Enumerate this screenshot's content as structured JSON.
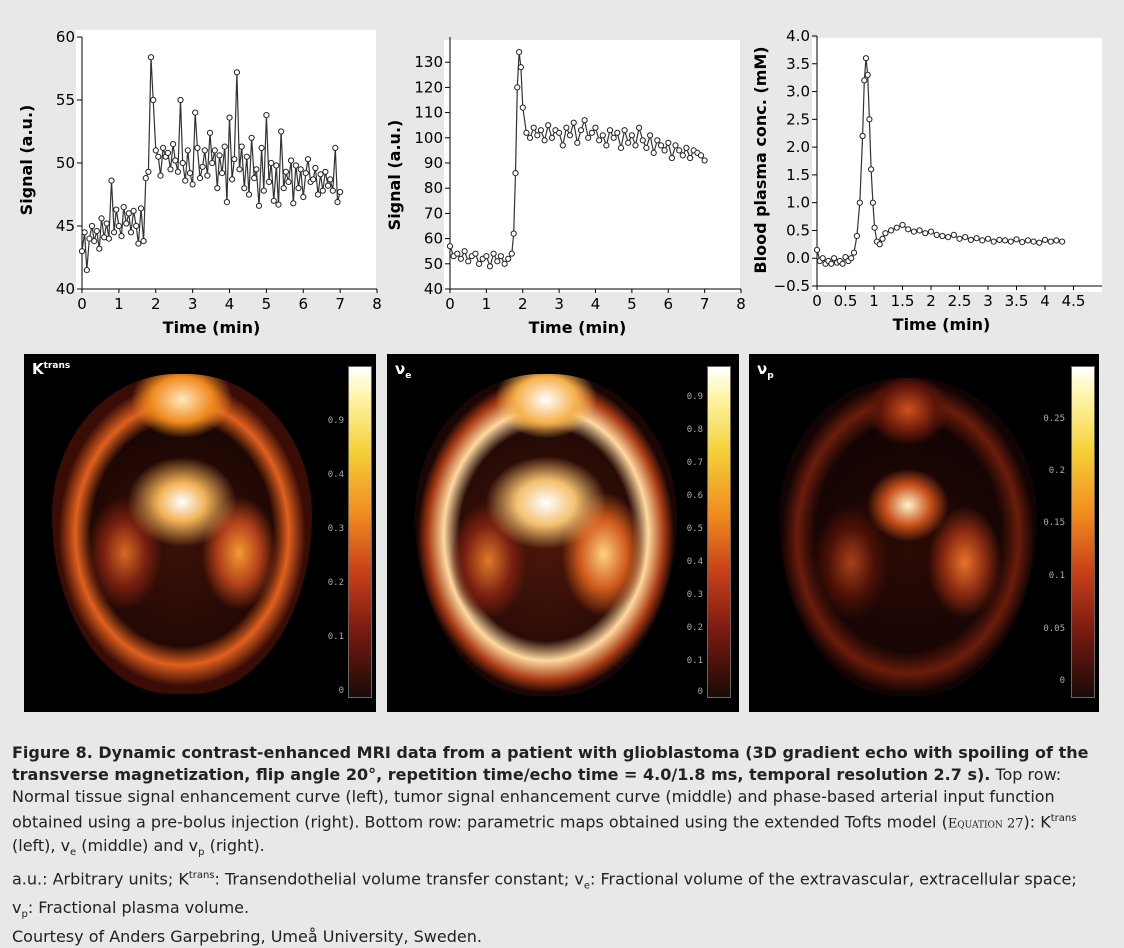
{
  "chart_data": [
    {
      "type": "line",
      "title": "",
      "xlabel": "Time (min)",
      "ylabel": "Signal (a.u.)",
      "xlim": [
        0,
        8
      ],
      "ylim": [
        40,
        60
      ],
      "xticks": [
        0,
        1,
        2,
        3,
        4,
        5,
        6,
        7,
        8
      ],
      "yticks": [
        40,
        45,
        50,
        55,
        60
      ],
      "x": [
        0.0,
        0.07,
        0.13,
        0.2,
        0.27,
        0.33,
        0.4,
        0.47,
        0.53,
        0.6,
        0.67,
        0.73,
        0.8,
        0.87,
        0.93,
        1.0,
        1.07,
        1.13,
        1.2,
        1.27,
        1.33,
        1.4,
        1.47,
        1.53,
        1.6,
        1.67,
        1.73,
        1.8,
        1.87,
        1.93,
        2.0,
        2.07,
        2.13,
        2.2,
        2.27,
        2.33,
        2.4,
        2.47,
        2.53,
        2.6,
        2.67,
        2.73,
        2.8,
        2.87,
        2.93,
        3.0,
        3.07,
        3.13,
        3.2,
        3.27,
        3.33,
        3.4,
        3.47,
        3.53,
        3.6,
        3.67,
        3.73,
        3.8,
        3.87,
        3.93,
        4.0,
        4.07,
        4.13,
        4.2,
        4.27,
        4.33,
        4.4,
        4.47,
        4.53,
        4.6,
        4.67,
        4.73,
        4.8,
        4.87,
        4.93,
        5.0,
        5.07,
        5.13,
        5.2,
        5.27,
        5.33,
        5.4,
        5.47,
        5.53,
        5.6,
        5.67,
        5.73,
        5.8,
        5.87,
        5.93,
        6.0,
        6.07,
        6.13,
        6.2,
        6.27,
        6.33,
        6.4,
        6.47,
        6.53,
        6.6,
        6.67,
        6.73,
        6.8,
        6.87,
        6.93,
        7.0
      ],
      "y": [
        43.0,
        44.5,
        41.5,
        44.0,
        45.0,
        43.8,
        44.6,
        43.2,
        45.6,
        44.1,
        45.2,
        44.0,
        48.6,
        44.5,
        46.3,
        45.0,
        44.2,
        46.5,
        45.2,
        46.0,
        44.5,
        46.2,
        45.0,
        43.6,
        46.4,
        43.8,
        48.8,
        49.3,
        58.4,
        55.0,
        51.0,
        50.5,
        49.0,
        51.2,
        50.5,
        50.8,
        49.5,
        51.5,
        50.2,
        49.3,
        55.0,
        50.0,
        48.6,
        51.0,
        49.2,
        48.3,
        54.0,
        51.2,
        48.8,
        49.7,
        51.0,
        49.0,
        52.4,
        50.0,
        51.0,
        48.0,
        50.6,
        49.2,
        51.3,
        46.9,
        53.6,
        48.7,
        50.3,
        57.2,
        49.5,
        51.3,
        48.0,
        50.5,
        47.5,
        52.0,
        48.8,
        49.5,
        46.6,
        51.2,
        47.8,
        53.8,
        48.5,
        50.0,
        47.0,
        49.8,
        46.7,
        52.5,
        48.0,
        49.3,
        48.5,
        50.2,
        46.8,
        49.8,
        48.0,
        49.5,
        47.3,
        49.2,
        50.3,
        48.5,
        48.7,
        49.6,
        47.5,
        49.1,
        47.8,
        49.3,
        48.2,
        48.7,
        47.8,
        51.2,
        46.9,
        47.7
      ]
    },
    {
      "type": "line",
      "title": "",
      "xlabel": "Time (min)",
      "ylabel": "Signal (a.u.)",
      "xlim": [
        0,
        8
      ],
      "ylim": [
        40,
        140
      ],
      "xticks": [
        0,
        1,
        2,
        3,
        4,
        5,
        6,
        7,
        8
      ],
      "yticks": [
        40,
        50,
        60,
        70,
        80,
        90,
        100,
        110,
        120,
        130
      ],
      "x": [
        0.0,
        0.1,
        0.2,
        0.3,
        0.4,
        0.5,
        0.6,
        0.7,
        0.8,
        0.9,
        1.0,
        1.1,
        1.2,
        1.3,
        1.4,
        1.5,
        1.6,
        1.7,
        1.75,
        1.8,
        1.85,
        1.9,
        1.95,
        2.0,
        2.1,
        2.2,
        2.3,
        2.4,
        2.5,
        2.6,
        2.7,
        2.8,
        2.9,
        3.0,
        3.1,
        3.2,
        3.3,
        3.4,
        3.5,
        3.6,
        3.7,
        3.8,
        3.9,
        4.0,
        4.1,
        4.2,
        4.3,
        4.4,
        4.5,
        4.6,
        4.7,
        4.8,
        4.9,
        5.0,
        5.1,
        5.2,
        5.3,
        5.4,
        5.5,
        5.6,
        5.7,
        5.8,
        5.9,
        6.0,
        6.1,
        6.2,
        6.3,
        6.4,
        6.5,
        6.6,
        6.7,
        6.8,
        6.9,
        7.0
      ],
      "y": [
        57,
        53,
        54,
        52,
        55,
        51,
        53,
        54,
        50,
        52,
        53,
        49,
        54,
        51,
        53,
        50,
        52,
        54,
        62,
        86,
        120,
        134,
        128,
        112,
        102,
        100,
        104,
        101,
        103,
        99,
        105,
        100,
        103,
        102,
        97,
        104,
        101,
        106,
        98,
        103,
        107,
        100,
        102,
        104,
        99,
        101,
        97,
        103,
        100,
        102,
        96,
        103,
        98,
        101,
        97,
        104,
        99,
        96,
        101,
        94,
        99,
        97,
        95,
        98,
        92,
        97,
        95,
        93,
        96,
        92,
        95,
        94,
        93,
        91
      ]
    },
    {
      "type": "line",
      "title": "",
      "xlabel": "Time (min)",
      "ylabel": "Blood plasma conc. (mM)",
      "xlim": [
        0,
        5
      ],
      "ylim": [
        -0.5,
        4.0
      ],
      "xticks": [
        0,
        0.5,
        1,
        1.5,
        2,
        2.5,
        3,
        3.5,
        4,
        4.5
      ],
      "yticks": [
        -0.5,
        0.0,
        0.5,
        1.0,
        1.5,
        2.0,
        2.5,
        3.0,
        3.5,
        4.0
      ],
      "x": [
        0.0,
        0.05,
        0.1,
        0.15,
        0.2,
        0.25,
        0.3,
        0.35,
        0.4,
        0.45,
        0.5,
        0.55,
        0.6,
        0.65,
        0.7,
        0.75,
        0.8,
        0.83,
        0.86,
        0.89,
        0.92,
        0.95,
        0.98,
        1.01,
        1.05,
        1.1,
        1.15,
        1.2,
        1.3,
        1.4,
        1.5,
        1.6,
        1.7,
        1.8,
        1.9,
        2.0,
        2.1,
        2.2,
        2.3,
        2.4,
        2.5,
        2.6,
        2.7,
        2.8,
        2.9,
        3.0,
        3.1,
        3.2,
        3.3,
        3.4,
        3.5,
        3.6,
        3.7,
        3.8,
        3.9,
        4.0,
        4.1,
        4.2,
        4.3
      ],
      "y": [
        0.15,
        -0.05,
        0.0,
        -0.1,
        -0.05,
        -0.1,
        0.0,
        -0.08,
        -0.05,
        -0.1,
        0.02,
        -0.05,
        0.0,
        0.1,
        0.4,
        1.0,
        2.2,
        3.2,
        3.6,
        3.3,
        2.5,
        1.6,
        1.0,
        0.55,
        0.3,
        0.25,
        0.35,
        0.45,
        0.5,
        0.55,
        0.6,
        0.52,
        0.48,
        0.5,
        0.45,
        0.48,
        0.42,
        0.4,
        0.38,
        0.42,
        0.35,
        0.38,
        0.33,
        0.36,
        0.32,
        0.35,
        0.3,
        0.33,
        0.32,
        0.3,
        0.34,
        0.29,
        0.32,
        0.3,
        0.28,
        0.33,
        0.3,
        0.32,
        0.3
      ]
    }
  ],
  "maps": [
    {
      "label_main": "K",
      "label_sup": "trans",
      "label_sub": "",
      "colorbar_ticks": [
        "0.9",
        "0.4",
        "0.3",
        "0.2",
        "0.1",
        "0"
      ]
    },
    {
      "label_main": "ν",
      "label_sup": "",
      "label_sub": "e",
      "colorbar_ticks": [
        "0.9",
        "0.8",
        "0.7",
        "0.6",
        "0.5",
        "0.4",
        "0.3",
        "0.2",
        "0.1",
        "0"
      ]
    },
    {
      "label_main": "ν",
      "label_sup": "",
      "label_sub": "p",
      "colorbar_ticks": [
        "0.25",
        "0.2",
        "0.15",
        "0.1",
        "0.05",
        "0"
      ]
    }
  ],
  "caption": {
    "title_bold": "Figure 8. Dynamic contrast-enhanced MRI data from a patient with glioblastoma (3D gradient echo with spoiling of the transverse magnetization, flip angle 20°, repetition time/echo time = 4.0/1.8 ms, temporal resolution 2.7 s).",
    "text_1": " Top row: Normal tissue signal enhancement curve (left), tumor signal enhancement curve (middle) and phase-based arterial input function obtained using a pre-bolus injection (right). Bottom row: parametric maps obtained using the extended Tofts model (",
    "equation_ref": "Equation 27",
    "text_2": "): K",
    "text_2_sup": "trans",
    "text_3": " (left), v",
    "text_3_sub": "e",
    "text_4": " (middle) and v",
    "text_4_sub": "p",
    "text_5": " (right).",
    "abbr_1": "a.u.: Arbitrary units; K",
    "abbr_1_sup": "trans",
    "abbr_2": ": Transendothelial volume transfer constant; v",
    "abbr_2_sub": "e",
    "abbr_3": ": Fractional volume of the extravascular, extracellular space;",
    "abbr_4": "v",
    "abbr_4_sub": "p",
    "abbr_5": ": Fractional plasma volume.",
    "courtesy": "Courtesy of Anders Garpebring, Umeå University, Sweden."
  }
}
